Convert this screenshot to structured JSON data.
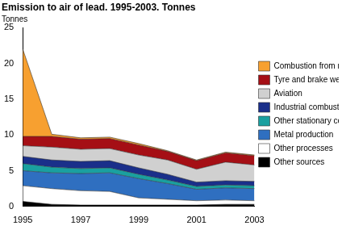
{
  "chart_data": {
    "type": "area",
    "title": "Emission to air of lead. 1995-2003. Tonnes",
    "ylabel": "Tonnes",
    "categories": [
      "1995",
      null,
      "1997",
      null,
      "1999",
      null,
      "2001",
      null,
      "2003"
    ],
    "stacked": true,
    "legend": "right",
    "grid": false,
    "ylim": [
      0,
      25
    ],
    "yticks": [
      0,
      5,
      10,
      15,
      20,
      25
    ],
    "series": [
      {
        "name": "Other sources",
        "color": "#000000",
        "values": [
          0.7,
          0.3,
          0.2,
          0.2,
          0.2,
          0.2,
          0.2,
          0.3,
          0.3
        ]
      },
      {
        "name": "Other processes",
        "color": "#ffffff",
        "values": [
          2.2,
          2.2,
          2.0,
          1.9,
          1.0,
          0.8,
          0.6,
          0.6,
          0.5
        ]
      },
      {
        "name": "Metal production",
        "color": "#2f6fc0",
        "values": [
          2.1,
          2.2,
          2.4,
          2.6,
          2.7,
          2.2,
          1.6,
          1.7,
          1.7
        ]
      },
      {
        "name": "Other stationary combustion",
        "color": "#1aa0a0",
        "values": [
          1.0,
          0.8,
          0.7,
          0.7,
          0.6,
          0.5,
          0.4,
          0.4,
          0.4
        ]
      },
      {
        "name": "Industrial combustion",
        "color": "#1a2f8a",
        "values": [
          1.0,
          1.0,
          1.0,
          1.0,
          0.9,
          0.8,
          0.6,
          0.6,
          0.6
        ]
      },
      {
        "name": "Aviation",
        "color": "#d0d0d0",
        "values": [
          1.5,
          1.8,
          1.7,
          1.7,
          1.8,
          2.0,
          1.8,
          2.6,
          2.3
        ]
      },
      {
        "name": "Tyre and brake wear",
        "color": "#a50f15",
        "values": [
          1.3,
          1.5,
          1.4,
          1.4,
          1.4,
          1.2,
          1.2,
          1.3,
          1.3
        ]
      },
      {
        "name": "Combustion from road traffic",
        "color": "#f7a030",
        "values": [
          12.2,
          0.3,
          0.2,
          0.2,
          0.2,
          0.1,
          0.1,
          0.1,
          0.1
        ]
      }
    ]
  }
}
